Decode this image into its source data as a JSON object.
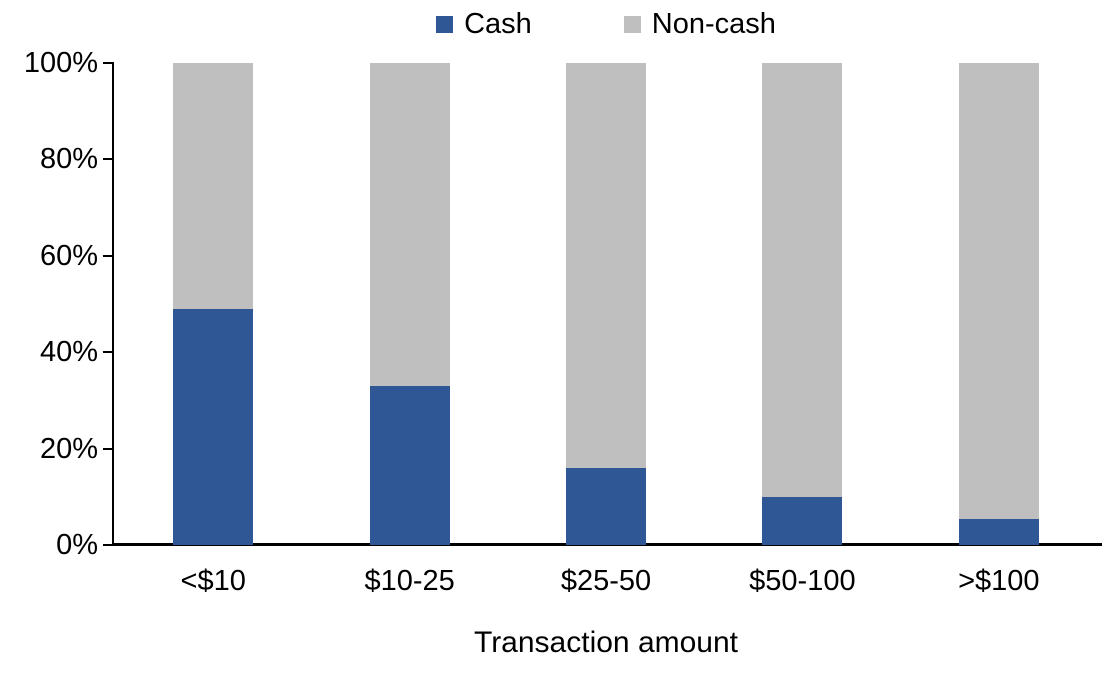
{
  "chart_data": {
    "type": "bar",
    "subtype": "stacked-100-percent",
    "title": "",
    "xlabel": "Transaction amount",
    "ylabel": "",
    "categories": [
      "<$10",
      "$10-25",
      "$25-50",
      "$50-100",
      ">$100"
    ],
    "series": [
      {
        "name": "Cash",
        "color": "#2F5795",
        "values": [
          49,
          33,
          16,
          10,
          5.5
        ]
      },
      {
        "name": "Non-cash",
        "color": "#BFBFBF",
        "values": [
          51,
          67,
          84,
          90,
          94.5
        ]
      }
    ],
    "ylim": [
      0,
      100
    ],
    "yticks": [
      0,
      20,
      40,
      60,
      80,
      100
    ],
    "ytick_labels": [
      "0%",
      "20%",
      "40%",
      "60%",
      "80%",
      "100%"
    ],
    "legend_position": "top-center",
    "grid": false,
    "axis_color": "#000000",
    "text_color": "#000000"
  }
}
